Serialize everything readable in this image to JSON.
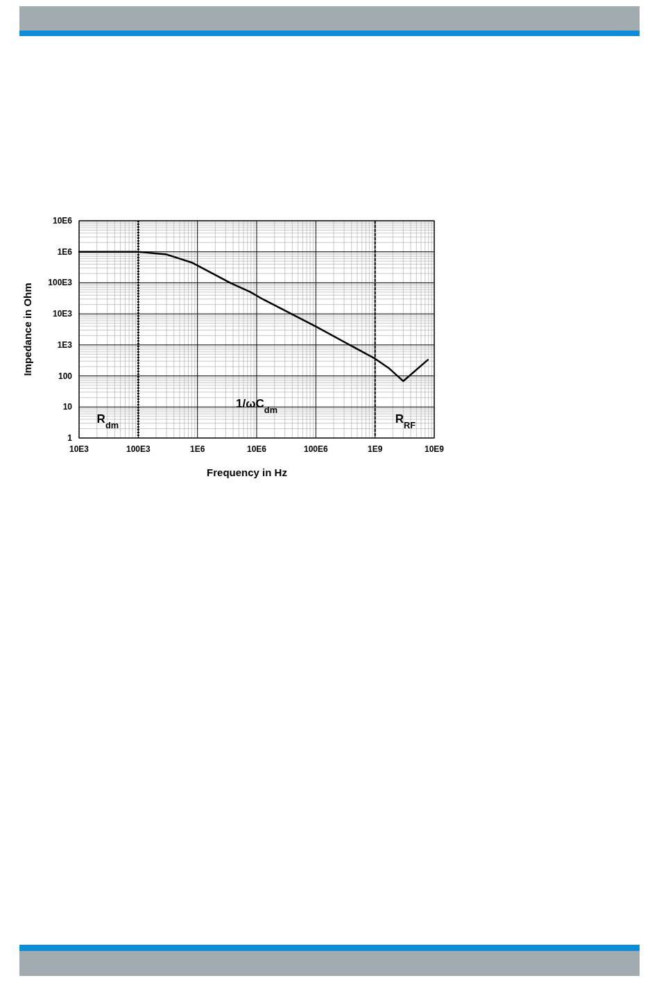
{
  "chart_data": {
    "type": "line",
    "xlabel": "Frequency in Hz",
    "ylabel": "Impedance in Ohm",
    "log": "xy",
    "grid": true,
    "line_style": "solid",
    "xlim": [
      10000,
      10000000000
    ],
    "ylim": [
      1,
      10000000
    ],
    "xticks": [
      {
        "value": 10000,
        "label": "10E3"
      },
      {
        "value": 100000,
        "label": "100E3"
      },
      {
        "value": 1000000,
        "label": "1E6"
      },
      {
        "value": 10000000,
        "label": "10E6"
      },
      {
        "value": 100000000,
        "label": "100E6"
      },
      {
        "value": 1000000000,
        "label": "1E9"
      },
      {
        "value": 10000000000,
        "label": "10E9"
      }
    ],
    "yticks": [
      1,
      10,
      100,
      {
        "value": 1000,
        "label": "1E3"
      },
      {
        "value": 10000,
        "label": "10E3"
      },
      {
        "value": 100000,
        "label": "100E3"
      },
      {
        "value": 1000000,
        "label": "1E6"
      },
      {
        "value": 10000000,
        "label": "10E6"
      }
    ],
    "series": [
      {
        "color": "#000000",
        "x": [
          10000,
          100000,
          300000,
          800000,
          3700000,
          7600000,
          13000000,
          100000000,
          1000000000,
          1700000000,
          3000000000,
          7800000000
        ],
        "values": [
          1000000,
          1000000,
          820000,
          450000,
          96000,
          52000,
          29000,
          3900,
          360,
          180,
          68,
          330
        ]
      }
    ],
    "ref_lines": [
      {
        "axis": "x",
        "value": 100000,
        "color": "#000000",
        "line_style": "dotted"
      },
      {
        "axis": "x",
        "value": 1000000000,
        "color": "#000000",
        "line_style": "dashed"
      }
    ],
    "annotations": [
      "R$_{dm}$",
      "1/ωC$_{dm}$",
      "R$_{RF}$"
    ]
  }
}
